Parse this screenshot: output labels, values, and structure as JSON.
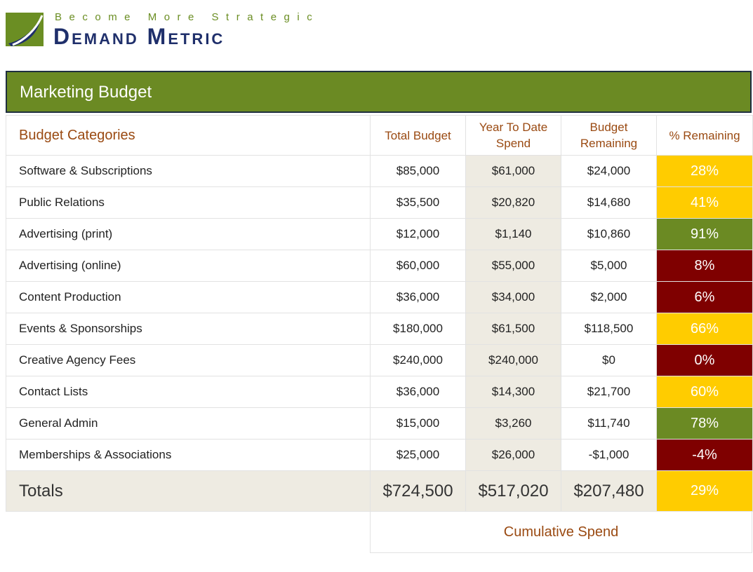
{
  "logo": {
    "tagline": "Become More Strategic",
    "brand": "Demand Metric",
    "colors": {
      "green": "#6b8e23",
      "navy": "#1f2f6b"
    }
  },
  "title": "Marketing Budget",
  "table": {
    "headers": {
      "category": "Budget Categories",
      "total": "Total Budget",
      "ytd": "Year To Date Spend",
      "remaining": "Budget Remaining",
      "pct": "% Remaining"
    },
    "rows": [
      {
        "category": "Software & Subscriptions",
        "total": "$85,000",
        "ytd": "$61,000",
        "remaining": "$24,000",
        "pct": "28%",
        "status": "yellow"
      },
      {
        "category": "Public Relations",
        "total": "$35,500",
        "ytd": "$20,820",
        "remaining": "$14,680",
        "pct": "41%",
        "status": "yellow"
      },
      {
        "category": "Advertising (print)",
        "total": "$12,000",
        "ytd": "$1,140",
        "remaining": "$10,860",
        "pct": "91%",
        "status": "green"
      },
      {
        "category": "Advertising (online)",
        "total": "$60,000",
        "ytd": "$55,000",
        "remaining": "$5,000",
        "pct": "8%",
        "status": "red"
      },
      {
        "category": "Content Production",
        "total": "$36,000",
        "ytd": "$34,000",
        "remaining": "$2,000",
        "pct": "6%",
        "status": "red"
      },
      {
        "category": "Events & Sponsorships",
        "total": "$180,000",
        "ytd": "$61,500",
        "remaining": "$118,500",
        "pct": "66%",
        "status": "yellow"
      },
      {
        "category": "Creative Agency Fees",
        "total": "$240,000",
        "ytd": "$240,000",
        "remaining": "$0",
        "pct": "0%",
        "status": "red"
      },
      {
        "category": "Contact Lists",
        "total": "$36,000",
        "ytd": "$14,300",
        "remaining": "$21,700",
        "pct": "60%",
        "status": "yellow"
      },
      {
        "category": "General Admin",
        "total": "$15,000",
        "ytd": "$3,260",
        "remaining": "$11,740",
        "pct": "78%",
        "status": "green"
      },
      {
        "category": "Memberships & Associations",
        "total": "$25,000",
        "ytd": "$26,000",
        "remaining": "-$1,000",
        "pct": "-4%",
        "status": "red"
      }
    ],
    "totals": {
      "label": "Totals",
      "total": "$724,500",
      "ytd": "$517,020",
      "remaining": "$207,480",
      "pct": "29%",
      "status": "yellow"
    }
  },
  "status_colors": {
    "yellow": "#ffcc00",
    "green": "#6b8a23",
    "red": "#7f0000"
  },
  "cumulative_label": "Cumulative Spend"
}
